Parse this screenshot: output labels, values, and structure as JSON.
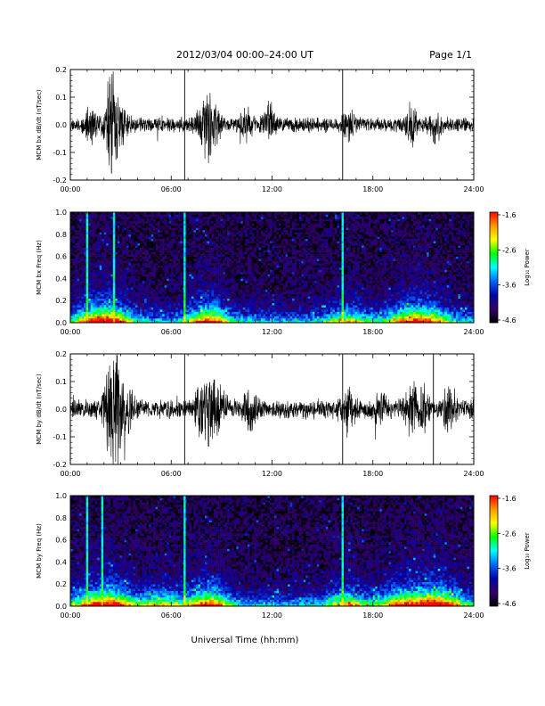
{
  "header": {
    "title": "2012/03/04  00:00–24:00 UT",
    "page": "Page 1/1"
  },
  "footer": {
    "xlabel": "Universal Time (hh:mm)"
  },
  "time_ticks": [
    "00:00",
    "06:00",
    "12:00",
    "18:00",
    "24:00"
  ],
  "colorbar": {
    "label": "Log₁₀ Power",
    "ticks": [
      "-1.6",
      "-2.6",
      "-3.6",
      "-4.6"
    ],
    "colors": [
      "#ff0000",
      "#ff9900",
      "#ffff00",
      "#00ff00",
      "#00ffff",
      "#0066ff",
      "#0000aa",
      "#330066",
      "#000000"
    ]
  },
  "chart_data": [
    {
      "type": "line",
      "ylabel": "MCM bx dB/dt (nT/sec)",
      "x_range_hours": [
        0,
        24
      ],
      "ylim": [
        -0.2,
        0.2
      ],
      "y_ticks": [
        "0.2",
        "0.1",
        "0.0",
        "-0.1",
        "-0.2"
      ],
      "spikes_hours": [
        6.8,
        16.2
      ],
      "bursts": [
        [
          1.2,
          0.06
        ],
        [
          2.3,
          0.1
        ],
        [
          2.6,
          0.12
        ],
        [
          3.2,
          0.06
        ],
        [
          7.8,
          0.07
        ],
        [
          8.2,
          0.09
        ],
        [
          8.6,
          0.06
        ],
        [
          10.5,
          0.05
        ],
        [
          11.8,
          0.07
        ],
        [
          16.6,
          0.06
        ],
        [
          20.3,
          0.07
        ],
        [
          21.7,
          0.05
        ]
      ],
      "noise": 0.03,
      "seed": 11
    },
    {
      "type": "heatmap",
      "ylabel": "MCM bx Freq (Hz)",
      "x_range_hours": [
        0,
        24
      ],
      "ylim": [
        0,
        1
      ],
      "y_ticks": [
        "1.0",
        "0.8",
        "0.6",
        "0.4",
        "0.2",
        "0.0"
      ],
      "zlim": [
        -4.6,
        -1.6
      ],
      "spikes_hours": [
        1.0,
        2.6,
        6.8,
        16.2
      ],
      "activity": [
        [
          1.2,
          0.6
        ],
        [
          2.5,
          0.8
        ],
        [
          8.2,
          0.9
        ],
        [
          16.5,
          0.5
        ],
        [
          20.0,
          0.7
        ],
        [
          21.5,
          0.6
        ]
      ],
      "seed": 23
    },
    {
      "type": "line",
      "ylabel": "MCM by dB/dt (nT/sec)",
      "x_range_hours": [
        0,
        24
      ],
      "ylim": [
        -0.2,
        0.2
      ],
      "y_ticks": [
        "0.2",
        "0.1",
        "0.0",
        "-0.1",
        "-0.2"
      ],
      "spikes_hours": [
        6.8,
        16.2,
        21.6
      ],
      "bursts": [
        [
          2.3,
          0.16
        ],
        [
          2.7,
          0.19
        ],
        [
          3.4,
          0.08
        ],
        [
          7.8,
          0.09
        ],
        [
          8.3,
          0.12
        ],
        [
          8.9,
          0.08
        ],
        [
          10.7,
          0.07
        ],
        [
          16.5,
          0.08
        ],
        [
          18.4,
          0.06
        ],
        [
          20.3,
          0.09
        ],
        [
          21.0,
          0.07
        ],
        [
          22.5,
          0.06
        ]
      ],
      "noise": 0.04,
      "seed": 37
    },
    {
      "type": "heatmap",
      "ylabel": "MCM by Freq (Hz)",
      "x_range_hours": [
        0,
        24
      ],
      "ylim": [
        0,
        1
      ],
      "y_ticks": [
        "1.0",
        "0.8",
        "0.6",
        "0.4",
        "0.2",
        "0.0"
      ],
      "zlim": [
        -4.6,
        -1.6
      ],
      "spikes_hours": [
        1.0,
        1.9,
        6.8,
        16.2
      ],
      "activity": [
        [
          1.2,
          0.6
        ],
        [
          2.6,
          0.8
        ],
        [
          5.4,
          0.5
        ],
        [
          8.2,
          0.9
        ],
        [
          16.5,
          0.6
        ],
        [
          19.5,
          0.7
        ],
        [
          21.2,
          0.8
        ],
        [
          22.5,
          0.6
        ]
      ],
      "seed": 51
    }
  ]
}
